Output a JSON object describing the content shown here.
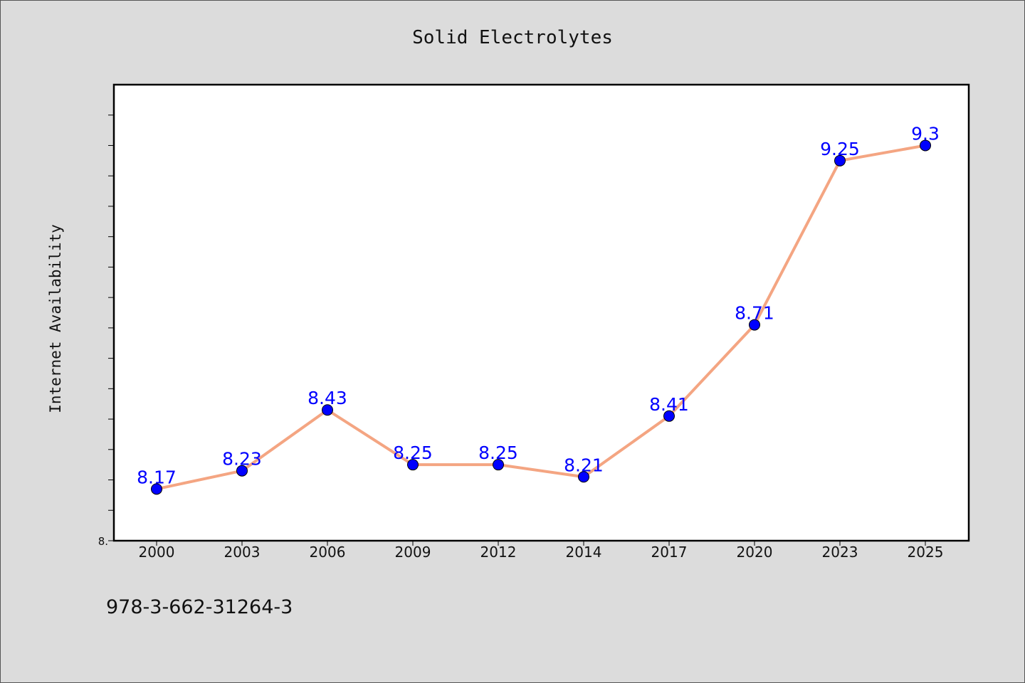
{
  "chart_data": {
    "type": "line",
    "title": "Solid Electrolytes",
    "xlabel": "",
    "ylabel": "Internet Availability",
    "categories": [
      "2000",
      "2003",
      "2006",
      "2009",
      "2012",
      "2014",
      "2017",
      "2020",
      "2023",
      "2025"
    ],
    "series": [
      {
        "values": [
          8.17,
          8.23,
          8.43,
          8.25,
          8.25,
          8.21,
          8.41,
          8.71,
          9.25,
          9.3
        ],
        "data_labels": [
          "8.17",
          "8.23",
          "8.43",
          "8.25",
          "8.25",
          "8.21",
          "8.41",
          "8.71",
          "9.25",
          "9.3"
        ]
      }
    ],
    "ylim": [
      8.0,
      9.5
    ],
    "y_tick_step": 0.1,
    "y_tick_labels": [
      {
        "value": 8.0,
        "label": "8."
      }
    ],
    "grid": false,
    "colors": {
      "line": "#f4a582",
      "marker": "#0000ff",
      "data_label": "#0000ff",
      "plot_background": "#ffffff",
      "figure_background": "#dcdcdc"
    }
  },
  "footer": {
    "isbn": "978-3-662-31264-3"
  }
}
